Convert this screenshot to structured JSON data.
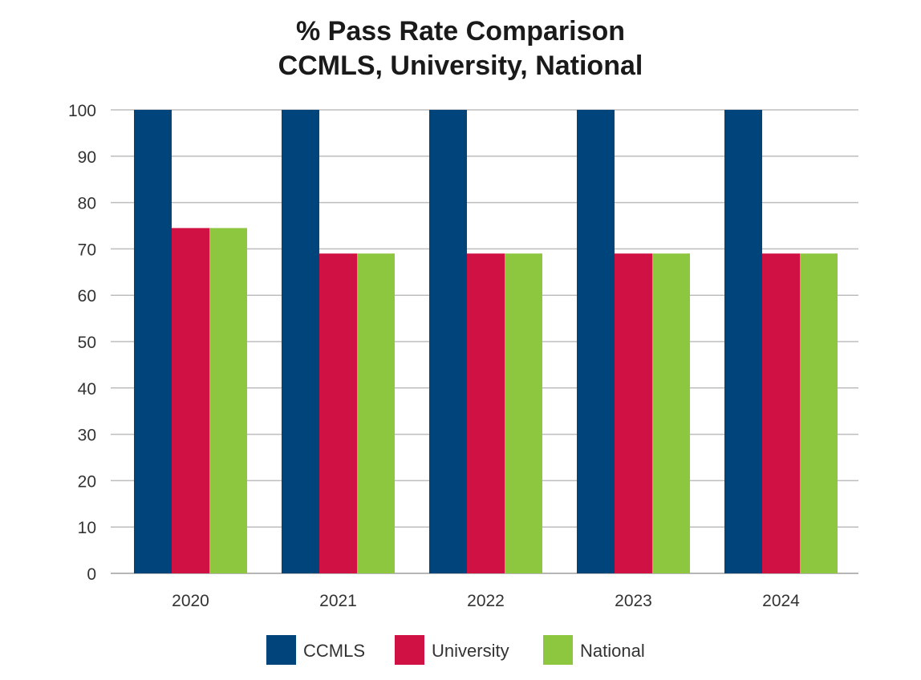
{
  "chart_data": {
    "type": "bar",
    "title": [
      "% Pass Rate Comparison",
      "CCMLS, University, National"
    ],
    "xlabel": "",
    "ylabel": "",
    "categories": [
      "2020",
      "2021",
      "2022",
      "2023",
      "2024"
    ],
    "ylim": [
      0,
      100
    ],
    "yticks": [
      0,
      10,
      20,
      30,
      40,
      50,
      60,
      70,
      80,
      90,
      100
    ],
    "grid": true,
    "legend_position": "bottom-center",
    "series": [
      {
        "name": "CCMLS",
        "color": "#00447c",
        "values": [
          100,
          100,
          100,
          100,
          100
        ]
      },
      {
        "name": "University",
        "color": "#d01144",
        "values": [
          74.5,
          69,
          69,
          69,
          69
        ]
      },
      {
        "name": "National",
        "color": "#8dc63f",
        "values": [
          74.5,
          69,
          69,
          69,
          69
        ]
      }
    ]
  }
}
